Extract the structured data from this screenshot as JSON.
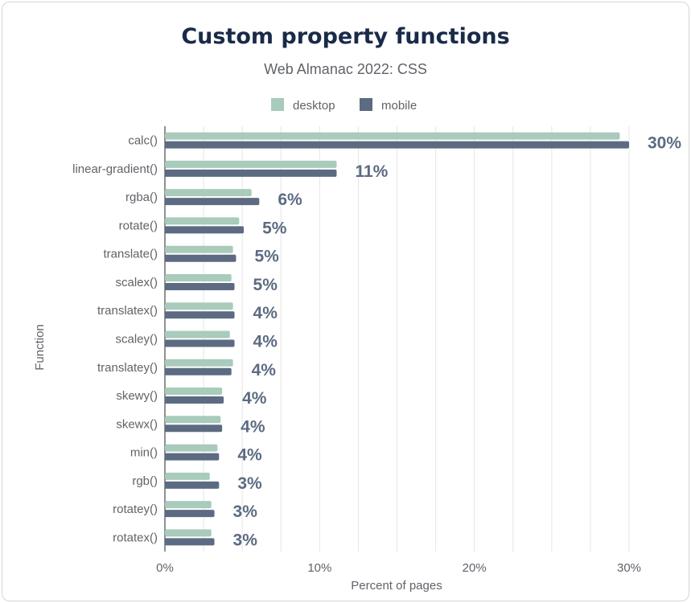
{
  "chart_data": {
    "type": "bar",
    "orientation": "horizontal",
    "title": "Custom property functions",
    "subtitle": "Web Almanac 2022: CSS",
    "xlabel": "Percent of pages",
    "ylabel": "Function",
    "xlim": [
      0,
      0.3
    ],
    "xticks": [
      "0%",
      "10%",
      "20%",
      "30%"
    ],
    "grid": true,
    "legend_position": "top",
    "categories": [
      "calc()",
      "linear-gradient()",
      "rgba()",
      "rotate()",
      "translate()",
      "scalex()",
      "translatex()",
      "scaley()",
      "translatey()",
      "skewy()",
      "skewx()",
      "min()",
      "rgb()",
      "rotatey()",
      "rotatex()"
    ],
    "series": [
      {
        "name": "desktop",
        "color": "#a8cbbb",
        "values": [
          0.294,
          0.111,
          0.056,
          0.048,
          0.044,
          0.043,
          0.044,
          0.042,
          0.044,
          0.037,
          0.036,
          0.034,
          0.029,
          0.03,
          0.03
        ]
      },
      {
        "name": "mobile",
        "color": "#5c6b82",
        "values": [
          0.3,
          0.111,
          0.061,
          0.051,
          0.046,
          0.045,
          0.045,
          0.045,
          0.043,
          0.038,
          0.037,
          0.035,
          0.035,
          0.032,
          0.032
        ]
      }
    ],
    "data_labels": [
      "30%",
      "11%",
      "6%",
      "5%",
      "5%",
      "5%",
      "4%",
      "4%",
      "4%",
      "4%",
      "4%",
      "4%",
      "3%",
      "3%",
      "3%"
    ]
  }
}
